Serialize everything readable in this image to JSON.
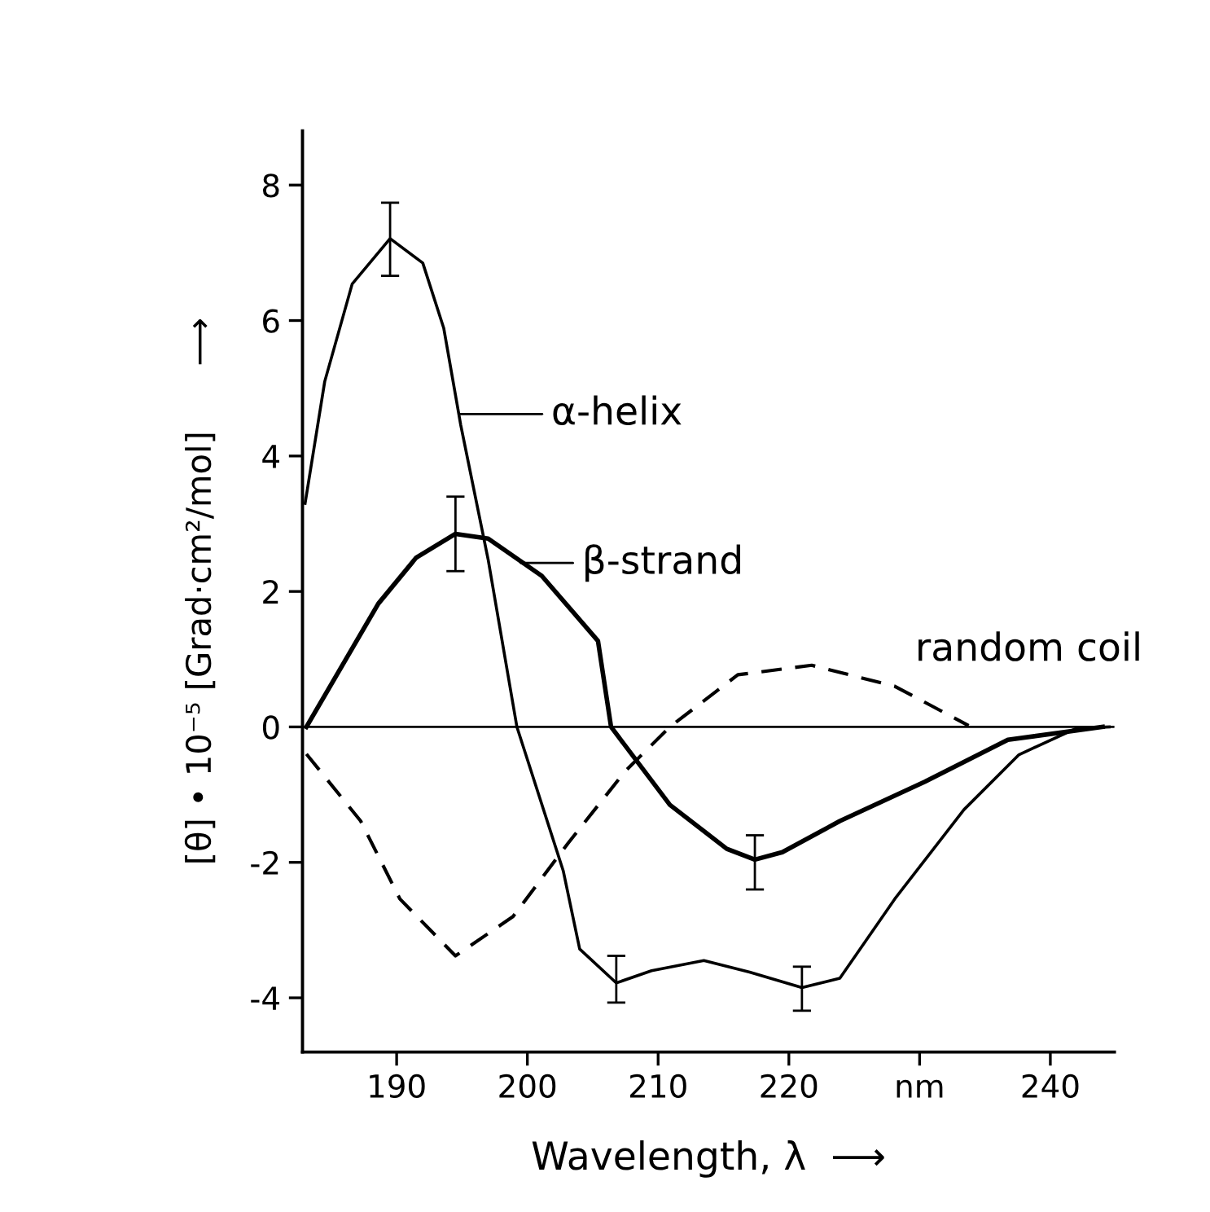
{
  "chart_data": {
    "type": "line",
    "xlabel": "Wavelength, λ  ⟶",
    "ylabel": "[θ] • 10⁻⁵ [Grad·cm²/mol]      ⟶",
    "xlim": [
      182.8,
      244.9
    ],
    "ylim": [
      -4.8,
      8.8
    ],
    "xticks": [
      190,
      200,
      210,
      220,
      {
        "value": 230,
        "label": "nm"
      },
      240
    ],
    "yticks": [
      -4,
      -2,
      0,
      2,
      4,
      6,
      8
    ],
    "grid": false,
    "legend": false,
    "series": [
      {
        "color": "#000000",
        "line_style": "solid",
        "x": [
          183,
          184.5,
          186.6,
          189.5,
          192,
          193.6,
          194.9,
          197,
          199.2,
          202.75,
          204,
          206.8,
          209.5,
          213.5,
          217,
          221,
          223.9,
          228.1,
          233.4,
          237.6,
          242,
          244.5
        ],
        "values": [
          3.3,
          5.1,
          6.54,
          7.21,
          6.85,
          5.89,
          4.46,
          2.47,
          0,
          -2.13,
          -3.28,
          -3.78,
          -3.6,
          -3.45,
          -3.62,
          -3.85,
          -3.71,
          -2.54,
          -1.22,
          -0.41,
          -0.02,
          0
        ],
        "errors": [
          null,
          null,
          null,
          [
            6.66,
            7.74
          ],
          null,
          null,
          null,
          null,
          null,
          null,
          null,
          [
            -4.07,
            -3.38
          ],
          null,
          null,
          null,
          [
            -4.19,
            -3.54
          ],
          null,
          null,
          null,
          null,
          null,
          null
        ]
      },
      {
        "color": "#000000",
        "line_style": "solid",
        "x": [
          183.1,
          188.6,
          191.5,
          194.5,
          197,
          201.1,
          205.4,
          206.4,
          210.9,
          215.25,
          217.4,
          219.5,
          223.9,
          230.4,
          236.75,
          244
        ],
        "values": [
          0,
          1.82,
          2.5,
          2.85,
          2.78,
          2.23,
          1.27,
          0,
          -1.15,
          -1.8,
          -1.96,
          -1.85,
          -1.39,
          -0.81,
          -0.19,
          0
        ],
        "errors": [
          null,
          null,
          null,
          [
            2.3,
            3.4
          ],
          null,
          null,
          null,
          null,
          null,
          null,
          [
            -2.4,
            -1.6
          ],
          null,
          null,
          null,
          null,
          null
        ]
      },
      {
        "color": "#000000",
        "line_style": "dashed",
        "x": [
          183.1,
          187.25,
          190.25,
          194.5,
          198.9,
          203.1,
          207.5,
          210.9,
          216.1,
          221.75,
          228.1,
          233.75
        ],
        "values": [
          -0.4,
          -1.39,
          -2.54,
          -3.38,
          -2.8,
          -1.72,
          -0.65,
          0,
          0.77,
          0.91,
          0.6,
          0.02
        ]
      }
    ],
    "ref_lines": [
      {
        "axis": "y",
        "value": 0,
        "color": "#000000",
        "line_style": "solid"
      }
    ],
    "annotations": [
      {
        "text": "α-helix",
        "x": 194.9,
        "y": 4.62
      },
      {
        "text": "β-strand",
        "x": 199.5,
        "y": 2.42
      },
      {
        "text": "random coil",
        "x": 228.1,
        "y": 0.6
      }
    ]
  }
}
